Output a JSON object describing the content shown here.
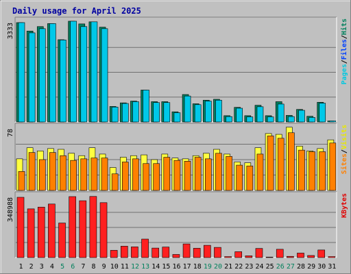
{
  "chart_data": {
    "type": "bar",
    "title": "Daily usage for April 2025",
    "days": [
      "1",
      "2",
      "3",
      "4",
      "5",
      "6",
      "7",
      "8",
      "9",
      "10",
      "11",
      "12",
      "13",
      "14",
      "15",
      "16",
      "17",
      "18",
      "19",
      "20",
      "21",
      "22",
      "23",
      "24",
      "25",
      "26",
      "27",
      "28",
      "29",
      "30",
      "31"
    ],
    "weekend_days": [
      "5",
      "6",
      "12",
      "13",
      "19",
      "20",
      "26",
      "27"
    ],
    "panels": [
      {
        "id": "hits",
        "ymax_label": "3333",
        "ymax": 3333,
        "legend": [
          {
            "name": "Pages",
            "color": "#00c8e0"
          },
          {
            "name": "Files",
            "color": "#0040ff"
          },
          {
            "name": "Hits",
            "color": "#00805c"
          }
        ],
        "series": [
          {
            "name": "Hits",
            "color": "#008060",
            "values": [
              3333,
              3050,
              3200,
              3300,
              2760,
              3380,
              3290,
              3360,
              3180,
              520,
              640,
              700,
              1070,
              680,
              680,
              340,
              920,
              610,
              730,
              760,
              210,
              490,
              210,
              560,
              210,
              680,
              220,
              420,
              190,
              660,
              0
            ]
          },
          {
            "name": "Files",
            "color": "#00c8e8",
            "values": [
              3333,
              2990,
              3130,
              3300,
              2750,
              3380,
              3200,
              3360,
              3130,
              500,
              620,
              680,
              1070,
              650,
              650,
              310,
              870,
              580,
              700,
              730,
              180,
              460,
              170,
              510,
              170,
              600,
              180,
              390,
              150,
              630,
              0
            ]
          }
        ]
      },
      {
        "id": "visits",
        "ymax_label": "78",
        "ymax": 78,
        "legend": [
          {
            "name": "Sites",
            "color": "#ff8000"
          },
          {
            "name": "Visits",
            "color": "#e8e800"
          }
        ],
        "series": [
          {
            "name": "Visits",
            "color": "#ffff40",
            "values": [
              40,
              54,
              50,
              53,
              52,
              47,
              44,
              54,
              46,
              29,
              42,
              44,
              45,
              39,
              46,
              41,
              40,
              44,
              47,
              52,
              46,
              36,
              35,
              54,
              72,
              71,
              80,
              56,
              50,
              53,
              64
            ]
          },
          {
            "name": "Sites",
            "color": "#ff8000",
            "values": [
              24,
              48,
              39,
              48,
              44,
              38,
              40,
              41,
              41,
              21,
              36,
              40,
              34,
              34,
              42,
              38,
              37,
              42,
              40,
              47,
              43,
              32,
              31,
              46,
              69,
              66,
              73,
              51,
              49,
              49,
              60
            ]
          }
        ]
      },
      {
        "id": "kbytes",
        "ymax_label": "348988",
        "ymax": 348988,
        "legend": [
          {
            "name": "KBytes",
            "color": "#e00000"
          }
        ],
        "series": [
          {
            "name": "KBytes",
            "color": "#ff2020",
            "values": [
              348988,
              282000,
              292000,
              310000,
              200000,
              353000,
              329000,
              354000,
              318000,
              42000,
              66000,
              62000,
              107000,
              55000,
              61000,
              18000,
              79000,
              54000,
              71000,
              59000,
              0,
              34000,
              10000,
              53000,
              3000,
              48000,
              7000,
              26000,
              12000,
              44000,
              0
            ]
          }
        ]
      }
    ]
  }
}
